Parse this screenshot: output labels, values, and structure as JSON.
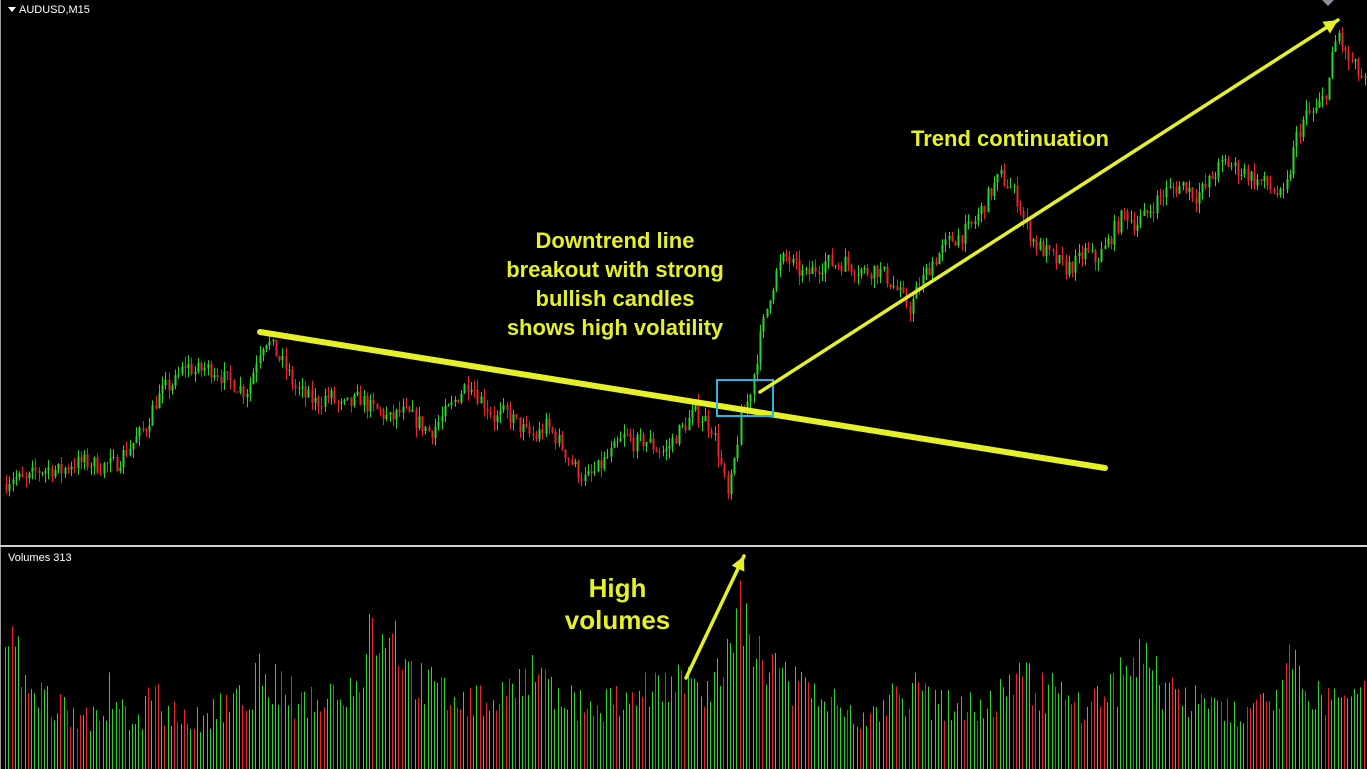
{
  "symbol": "AUDUSD,M15",
  "volume_label": "Volumes 313",
  "colors": {
    "background": "#000000",
    "bull_candle": "#2bd62b",
    "bear_candle": "#e8232b",
    "annotation": "#e6f026",
    "breakout_box": "#1fb8e8"
  },
  "annotations": {
    "breakout": [
      "Downtrend line",
      "breakout with strong",
      "bullish candles",
      "shows high volatility"
    ],
    "trend": "Trend continuation",
    "volume": [
      "High",
      "volumes"
    ]
  },
  "chart_data": [
    {
      "type": "candlestick",
      "title": "",
      "series": [
        {
          "name": "",
          "close_path": [
            [
              0,
              0.12
            ],
            [
              12,
              0.18
            ],
            [
              25,
              0.15
            ],
            [
              35,
              0.2
            ],
            [
              50,
              0.22
            ],
            [
              60,
              0.2
            ],
            [
              70,
              0.24
            ],
            [
              85,
              0.25
            ],
            [
              100,
              0.23
            ],
            [
              115,
              0.24
            ],
            [
              125,
              0.3
            ],
            [
              135,
              0.36
            ],
            [
              145,
              0.42
            ],
            [
              155,
              0.55
            ],
            [
              165,
              0.62
            ],
            [
              175,
              0.65
            ],
            [
              185,
              0.74
            ],
            [
              195,
              0.7
            ],
            [
              205,
              0.72
            ],
            [
              215,
              0.71
            ],
            [
              225,
              0.66
            ],
            [
              235,
              0.64
            ],
            [
              245,
              0.6
            ],
            [
              250,
              0.65
            ],
            [
              258,
              0.8
            ],
            [
              265,
              0.87
            ],
            [
              275,
              0.8
            ],
            [
              285,
              0.72
            ],
            [
              295,
              0.62
            ],
            [
              305,
              0.58
            ],
            [
              315,
              0.55
            ],
            [
              330,
              0.58
            ],
            [
              340,
              0.52
            ],
            [
              350,
              0.54
            ],
            [
              360,
              0.57
            ],
            [
              370,
              0.52
            ],
            [
              380,
              0.5
            ],
            [
              390,
              0.46
            ],
            [
              400,
              0.5
            ],
            [
              410,
              0.48
            ],
            [
              420,
              0.44
            ],
            [
              430,
              0.4
            ],
            [
              440,
              0.46
            ],
            [
              450,
              0.52
            ],
            [
              460,
              0.6
            ],
            [
              470,
              0.66
            ],
            [
              478,
              0.58
            ],
            [
              488,
              0.52
            ],
            [
              495,
              0.46
            ],
            [
              505,
              0.5
            ],
            [
              515,
              0.45
            ],
            [
              525,
              0.4
            ],
            [
              535,
              0.37
            ],
            [
              545,
              0.43
            ],
            [
              555,
              0.38
            ],
            [
              565,
              0.3
            ],
            [
              575,
              0.22
            ],
            [
              585,
              0.16
            ],
            [
              595,
              0.2
            ],
            [
              605,
              0.26
            ],
            [
              615,
              0.32
            ],
            [
              625,
              0.38
            ],
            [
              635,
              0.34
            ],
            [
              645,
              0.36
            ],
            [
              655,
              0.32
            ],
            [
              665,
              0.3
            ],
            [
              675,
              0.38
            ],
            [
              685,
              0.44
            ],
            [
              695,
              0.5
            ],
            [
              705,
              0.46
            ],
            [
              712,
              0.42
            ],
            [
              718,
              0.3
            ],
            [
              723,
              0.18
            ],
            [
              728,
              0.06
            ],
            [
              733,
              0.22
            ],
            [
              740,
              0.46
            ],
            [
              748,
              0.56
            ],
            [
              753,
              0.68
            ],
            [
              758,
              0.82
            ],
            [
              763,
              0.94
            ],
            [
              770,
              1.1
            ],
            [
              778,
              1.22
            ],
            [
              785,
              1.28
            ],
            [
              795,
              1.22
            ],
            [
              805,
              1.18
            ],
            [
              815,
              1.22
            ],
            [
              825,
              1.25
            ],
            [
              835,
              1.24
            ],
            [
              845,
              1.25
            ],
            [
              855,
              1.22
            ],
            [
              865,
              1.2
            ],
            [
              875,
              1.22
            ],
            [
              885,
              1.18
            ],
            [
              895,
              1.12
            ],
            [
              903,
              1.06
            ],
            [
              910,
              1.02
            ],
            [
              918,
              1.12
            ],
            [
              928,
              1.22
            ],
            [
              940,
              1.3
            ],
            [
              950,
              1.36
            ],
            [
              960,
              1.38
            ],
            [
              970,
              1.42
            ],
            [
              980,
              1.5
            ],
            [
              990,
              1.6
            ],
            [
              1000,
              1.68
            ],
            [
              1010,
              1.62
            ],
            [
              1018,
              1.56
            ],
            [
              1025,
              1.44
            ],
            [
              1035,
              1.34
            ],
            [
              1045,
              1.3
            ],
            [
              1055,
              1.26
            ],
            [
              1065,
              1.22
            ],
            [
              1075,
              1.24
            ],
            [
              1085,
              1.3
            ],
            [
              1095,
              1.26
            ],
            [
              1105,
              1.32
            ],
            [
              1115,
              1.42
            ],
            [
              1125,
              1.5
            ],
            [
              1135,
              1.44
            ],
            [
              1145,
              1.48
            ],
            [
              1155,
              1.55
            ],
            [
              1165,
              1.6
            ],
            [
              1175,
              1.62
            ],
            [
              1185,
              1.64
            ],
            [
              1195,
              1.58
            ],
            [
              1205,
              1.62
            ],
            [
              1215,
              1.7
            ],
            [
              1225,
              1.75
            ],
            [
              1235,
              1.72
            ],
            [
              1245,
              1.7
            ],
            [
              1255,
              1.66
            ],
            [
              1265,
              1.64
            ],
            [
              1275,
              1.6
            ],
            [
              1282,
              1.56
            ],
            [
              1288,
              1.66
            ],
            [
              1295,
              1.86
            ],
            [
              1305,
              1.98
            ],
            [
              1315,
              2.0
            ],
            [
              1322,
              2.06
            ],
            [
              1328,
              2.14
            ],
            [
              1333,
              2.3
            ],
            [
              1338,
              2.4
            ],
            [
              1345,
              2.28
            ],
            [
              1355,
              2.22
            ],
            [
              1367,
              2.12
            ]
          ]
        }
      ],
      "trendline_down": {
        "from": [
          260,
          0.9
        ],
        "to": [
          1105,
          0.22
        ]
      },
      "trend_arrow": {
        "from": [
          760,
          0.6
        ],
        "to": [
          1338,
          2.46
        ]
      },
      "breakout_box": {
        "x_from": 717,
        "x_to": 773,
        "y_from": 0.48,
        "y_to": 0.66
      },
      "grid": false
    },
    {
      "type": "bar",
      "title": "Volumes 313",
      "series": [
        {
          "name": "",
          "volume_path": [
            [
              0,
              0.55
            ],
            [
              15,
              0.72
            ],
            [
              25,
              0.45
            ],
            [
              40,
              0.4
            ],
            [
              60,
              0.35
            ],
            [
              80,
              0.33
            ],
            [
              100,
              0.3
            ],
            [
              110,
              0.45
            ],
            [
              125,
              0.32
            ],
            [
              140,
              0.3
            ],
            [
              150,
              0.45
            ],
            [
              165,
              0.35
            ],
            [
              180,
              0.3
            ],
            [
              200,
              0.28
            ],
            [
              220,
              0.35
            ],
            [
              240,
              0.4
            ],
            [
              260,
              0.55
            ],
            [
              280,
              0.45
            ],
            [
              300,
              0.4
            ],
            [
              320,
              0.42
            ],
            [
              340,
              0.48
            ],
            [
              360,
              0.55
            ],
            [
              372,
              0.78
            ],
            [
              385,
              0.86
            ],
            [
              395,
              0.72
            ],
            [
              410,
              0.55
            ],
            [
              425,
              0.48
            ],
            [
              440,
              0.45
            ],
            [
              460,
              0.4
            ],
            [
              480,
              0.38
            ],
            [
              500,
              0.42
            ],
            [
              520,
              0.5
            ],
            [
              535,
              0.58
            ],
            [
              550,
              0.45
            ],
            [
              570,
              0.38
            ],
            [
              590,
              0.35
            ],
            [
              610,
              0.4
            ],
            [
              630,
              0.42
            ],
            [
              650,
              0.45
            ],
            [
              670,
              0.48
            ],
            [
              690,
              0.5
            ],
            [
              705,
              0.45
            ],
            [
              720,
              0.58
            ],
            [
              733,
              0.68
            ],
            [
              742,
              0.95
            ],
            [
              750,
              0.8
            ],
            [
              760,
              0.62
            ],
            [
              775,
              0.55
            ],
            [
              790,
              0.48
            ],
            [
              810,
              0.42
            ],
            [
              830,
              0.38
            ],
            [
              850,
              0.35
            ],
            [
              870,
              0.32
            ],
            [
              890,
              0.38
            ],
            [
              910,
              0.45
            ],
            [
              930,
              0.4
            ],
            [
              950,
              0.38
            ],
            [
              970,
              0.35
            ],
            [
              990,
              0.4
            ],
            [
              1010,
              0.45
            ],
            [
              1025,
              0.52
            ],
            [
              1040,
              0.48
            ],
            [
              1060,
              0.42
            ],
            [
              1080,
              0.38
            ],
            [
              1100,
              0.42
            ],
            [
              1115,
              0.48
            ],
            [
              1130,
              0.68
            ],
            [
              1145,
              0.62
            ],
            [
              1160,
              0.5
            ],
            [
              1180,
              0.42
            ],
            [
              1200,
              0.38
            ],
            [
              1220,
              0.35
            ],
            [
              1240,
              0.3
            ],
            [
              1260,
              0.35
            ],
            [
              1278,
              0.48
            ],
            [
              1285,
              0.62
            ],
            [
              1300,
              0.52
            ],
            [
              1315,
              0.45
            ],
            [
              1330,
              0.42
            ],
            [
              1345,
              0.48
            ],
            [
              1367,
              0.4
            ]
          ]
        }
      ],
      "grid": false
    }
  ]
}
